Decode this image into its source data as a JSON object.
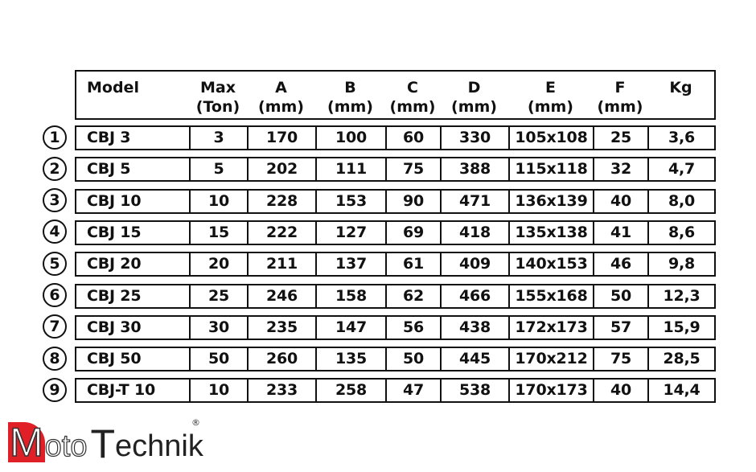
{
  "headers": [
    [
      "Model",
      ""
    ],
    [
      "Max",
      "(Ton)"
    ],
    [
      "A",
      "(mm)"
    ],
    [
      "B",
      "(mm)"
    ],
    [
      "C",
      "(mm)"
    ],
    [
      "D",
      "(mm)"
    ],
    [
      "E",
      "(mm)"
    ],
    [
      "F",
      "(mm)"
    ],
    [
      "Kg",
      ""
    ]
  ],
  "rows": [
    {
      "n": "1",
      "cells": [
        "CBJ 3",
        "3",
        "170",
        "100",
        "60",
        "330",
        "105x108",
        "25",
        "3,6"
      ]
    },
    {
      "n": "2",
      "cells": [
        "CBJ 5",
        "5",
        "202",
        "111",
        "75",
        "388",
        "115x118",
        "32",
        "4,7"
      ]
    },
    {
      "n": "3",
      "cells": [
        "CBJ 10",
        "10",
        "228",
        "153",
        "90",
        "471",
        "136x139",
        "40",
        "8,0"
      ]
    },
    {
      "n": "4",
      "cells": [
        "CBJ 15",
        "15",
        "222",
        "127",
        "69",
        "418",
        "135x138",
        "41",
        "8,6"
      ]
    },
    {
      "n": "5",
      "cells": [
        "CBJ 20",
        "20",
        "211",
        "137",
        "61",
        "409",
        "140x153",
        "46",
        "9,8"
      ]
    },
    {
      "n": "6",
      "cells": [
        "CBJ 25",
        "25",
        "246",
        "158",
        "62",
        "466",
        "155x168",
        "50",
        "12,3"
      ]
    },
    {
      "n": "7",
      "cells": [
        "CBJ 30",
        "30",
        "235",
        "147",
        "56",
        "438",
        "172x173",
        "57",
        "15,9"
      ]
    },
    {
      "n": "8",
      "cells": [
        "CBJ 50",
        "50",
        "260",
        "135",
        "50",
        "445",
        "170x212",
        "75",
        "28,5"
      ]
    },
    {
      "n": "9",
      "cells": [
        "CBJ-T 10",
        "10",
        "233",
        "258",
        "47",
        "538",
        "170x173",
        "40",
        "14,4"
      ]
    }
  ],
  "logo": {
    "m": "M",
    "oto": "oto",
    "t": "T",
    "echnik": "echnik",
    "registered": "®"
  },
  "colors": {
    "brand_red": "#e01f26",
    "text": "#111111"
  }
}
